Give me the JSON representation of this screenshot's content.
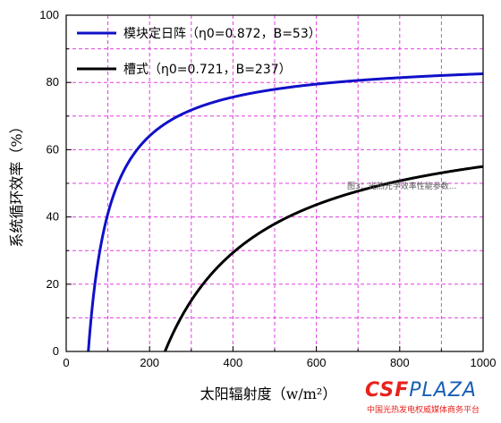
{
  "chart_data": {
    "type": "line",
    "xlabel": "太阳辐射度（w/m²）",
    "ylabel": "系统循环效率（%）",
    "xlim": [
      0,
      1000
    ],
    "ylim": [
      0,
      100
    ],
    "x_ticks": [
      0,
      200,
      400,
      600,
      800,
      1000
    ],
    "y_ticks": [
      0,
      20,
      40,
      60,
      80,
      100
    ],
    "grid": "dashed magenta, both axes",
    "legend_position": "top-left",
    "series": [
      {
        "name": "模块定日阵（η0=0.872，B=53）",
        "color": "#1010c8",
        "eta0": 0.872,
        "B": 53,
        "x": [
          53,
          60,
          70,
          80,
          100,
          125,
          150,
          200,
          250,
          300,
          400,
          500,
          600,
          700,
          800,
          900,
          1000
        ],
        "y": [
          0.0,
          10.2,
          21.2,
          29.4,
          41.0,
          50.2,
          56.4,
          64.1,
          68.7,
          71.8,
          75.7,
          77.9,
          79.5,
          80.6,
          81.4,
          82.1,
          82.6
        ]
      },
      {
        "name": "槽式（η0=0.721，B=237）",
        "color": "#000000",
        "eta0": 0.721,
        "B": 237,
        "x": [
          237,
          250,
          275,
          300,
          350,
          400,
          450,
          500,
          600,
          700,
          800,
          900,
          1000
        ],
        "y": [
          0.0,
          3.7,
          10.0,
          15.1,
          23.3,
          29.4,
          34.1,
          37.9,
          43.6,
          47.7,
          50.7,
          53.1,
          55.0
        ]
      }
    ],
    "annotation": "图3：光热光学效率性能参数..."
  },
  "watermark": {
    "logo_main": "CSF",
    "logo_tail": "PLAZA",
    "subtitle": "中国光热发电权威媒体商务平台"
  }
}
